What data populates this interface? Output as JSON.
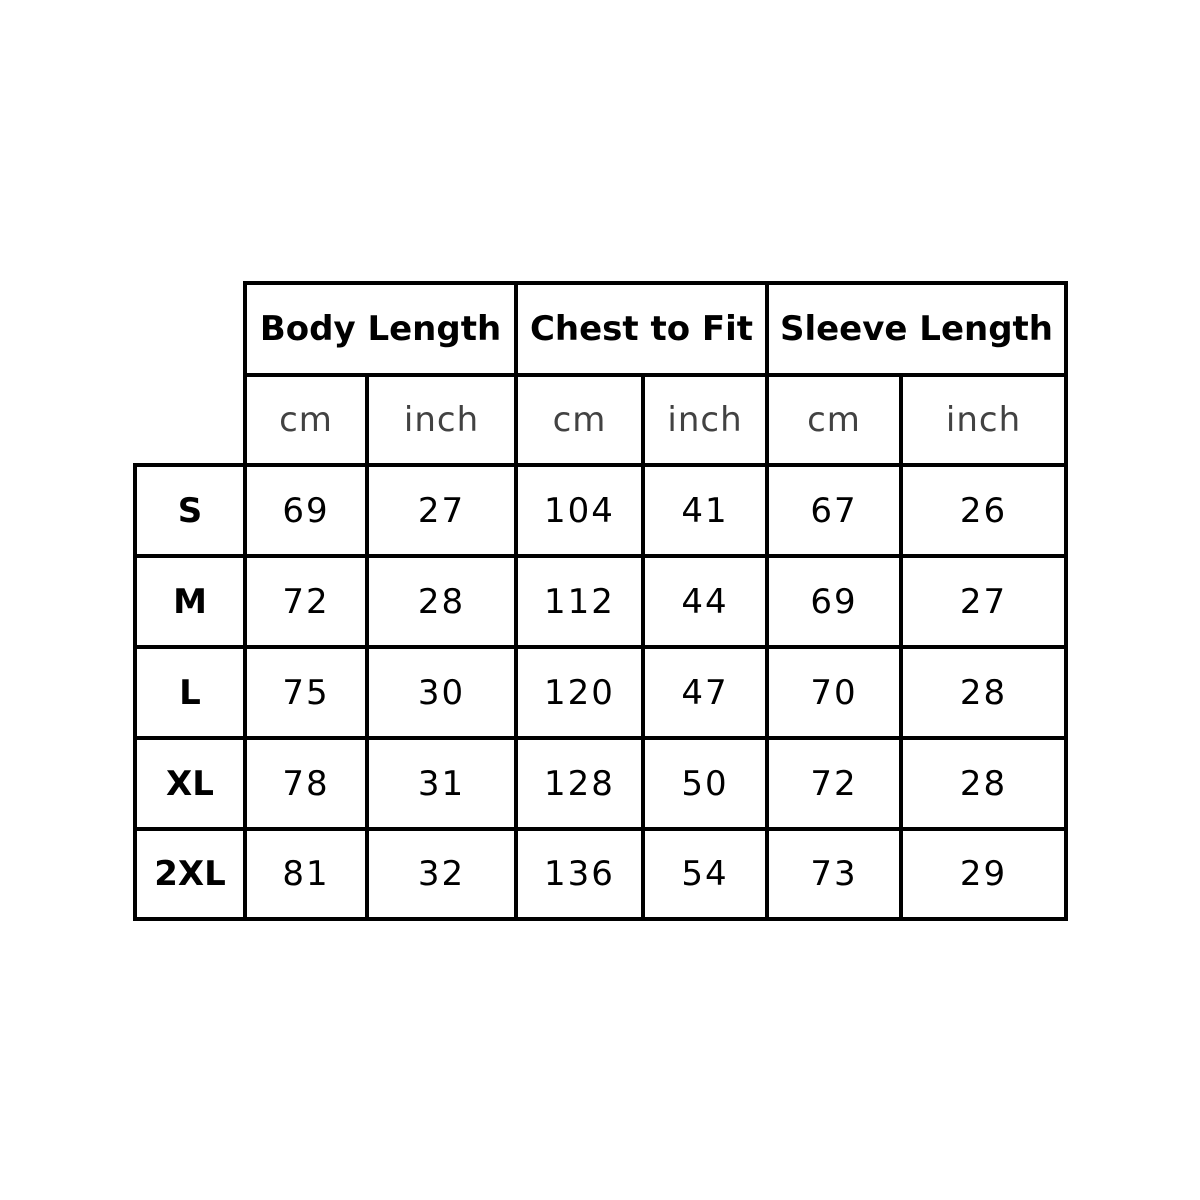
{
  "table": {
    "groups": [
      "Body Length",
      "Chest to Fit",
      "Sleeve Length"
    ],
    "units": [
      "cm",
      "inch",
      "cm",
      "inch",
      "cm",
      "inch"
    ],
    "rows": [
      {
        "size": "S",
        "values": [
          "69",
          "27",
          "104",
          "41",
          "67",
          "26"
        ]
      },
      {
        "size": "M",
        "values": [
          "72",
          "28",
          "112",
          "44",
          "69",
          "27"
        ]
      },
      {
        "size": "L",
        "values": [
          "75",
          "30",
          "120",
          "47",
          "70",
          "28"
        ]
      },
      {
        "size": "XL",
        "values": [
          "78",
          "31",
          "128",
          "50",
          "72",
          "28"
        ]
      },
      {
        "size": "2XL",
        "values": [
          "81",
          "32",
          "136",
          "54",
          "73",
          "29"
        ]
      }
    ]
  },
  "colors": {
    "lines": "#000000",
    "background": "#ffffff"
  }
}
